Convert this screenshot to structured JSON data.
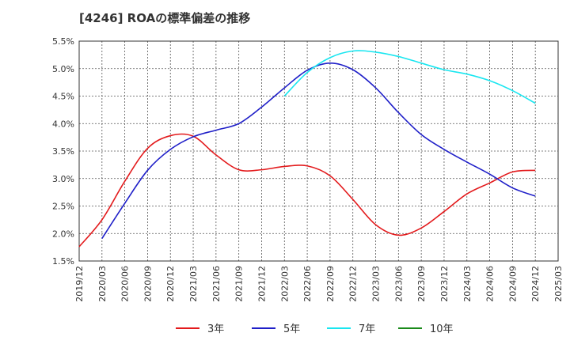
{
  "title": "[4246]  ROAの標準偏差の推移",
  "chart_data": {
    "type": "line",
    "title": "[4246]  ROAの標準偏差の推移",
    "xlabel": "",
    "ylabel": "",
    "x_ticks": [
      "2019/12",
      "2020/03",
      "2020/06",
      "2020/09",
      "2020/12",
      "2021/03",
      "2021/06",
      "2021/09",
      "2021/12",
      "2022/03",
      "2022/06",
      "2022/09",
      "2022/12",
      "2023/03",
      "2023/06",
      "2023/09",
      "2023/12",
      "2024/03",
      "2024/06",
      "2024/09",
      "2024/12",
      "2025/03"
    ],
    "y_ticks": [
      "1.5%",
      "2.0%",
      "2.5%",
      "3.0%",
      "3.5%",
      "4.0%",
      "4.5%",
      "5.0%",
      "5.5%"
    ],
    "ylim": [
      1.5,
      5.5
    ],
    "grid": true,
    "legend_position": "bottom",
    "series": [
      {
        "name": "3年",
        "color": "#e31a1c",
        "x": [
          "2019/12",
          "2020/03",
          "2020/06",
          "2020/09",
          "2020/12",
          "2021/03",
          "2021/06",
          "2021/09",
          "2021/12",
          "2022/03",
          "2022/06",
          "2022/09",
          "2022/12",
          "2023/03",
          "2023/06",
          "2023/09",
          "2023/12",
          "2024/03",
          "2024/06",
          "2024/09",
          "2024/12"
        ],
        "values": [
          1.76,
          2.25,
          2.95,
          3.55,
          3.78,
          3.77,
          3.43,
          3.16,
          3.16,
          3.22,
          3.23,
          3.05,
          2.62,
          2.16,
          1.97,
          2.1,
          2.4,
          2.72,
          2.92,
          3.12,
          3.15
        ]
      },
      {
        "name": "5年",
        "color": "#1f1fc8",
        "x": [
          "2020/03",
          "2020/06",
          "2020/09",
          "2020/12",
          "2021/03",
          "2021/06",
          "2021/09",
          "2021/12",
          "2022/03",
          "2022/06",
          "2022/09",
          "2022/12",
          "2023/03",
          "2023/06",
          "2023/09",
          "2023/12",
          "2024/03",
          "2024/06",
          "2024/09",
          "2024/12"
        ],
        "values": [
          1.91,
          2.55,
          3.15,
          3.53,
          3.76,
          3.88,
          4.0,
          4.3,
          4.65,
          4.97,
          5.1,
          4.98,
          4.65,
          4.2,
          3.8,
          3.53,
          3.3,
          3.08,
          2.83,
          2.68
        ]
      },
      {
        "name": "7年",
        "color": "#19e6f0",
        "x": [
          "2022/03",
          "2022/06",
          "2022/09",
          "2022/12",
          "2023/03",
          "2023/06",
          "2023/09",
          "2023/12",
          "2024/03",
          "2024/06",
          "2024/09",
          "2024/12"
        ],
        "values": [
          4.5,
          4.93,
          5.2,
          5.32,
          5.3,
          5.22,
          5.1,
          4.98,
          4.9,
          4.78,
          4.6,
          4.37
        ]
      },
      {
        "name": "10年",
        "color": "#1a8a1a",
        "x": [],
        "values": []
      }
    ]
  }
}
